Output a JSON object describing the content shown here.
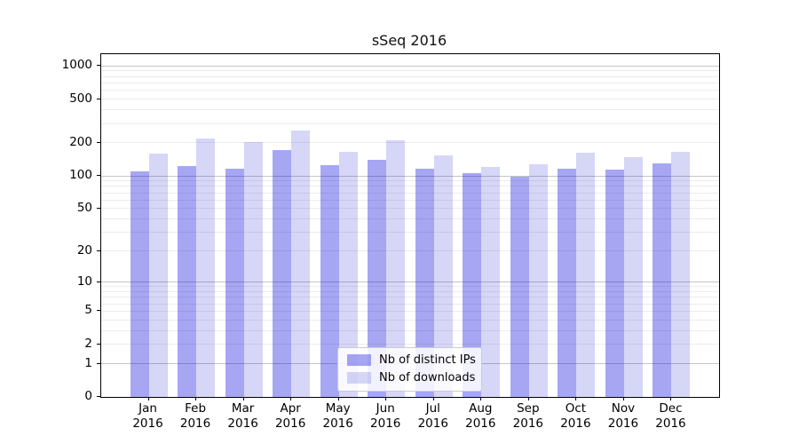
{
  "chart_data": {
    "type": "bar",
    "title": "sSeq 2016",
    "categories": [
      "Jan",
      "Feb",
      "Mar",
      "Apr",
      "May",
      "Jun",
      "Jul",
      "Aug",
      "Sep",
      "Oct",
      "Nov",
      "Dec"
    ],
    "category_year": "2016",
    "series": [
      {
        "name": "Nb of distinct IPs",
        "color": "rgba(0,0,220,0.35)",
        "values": [
          109,
          124,
          116,
          172,
          125,
          141,
          117,
          106,
          98,
          116,
          115,
          131
        ]
      },
      {
        "name": "Nb of downloads",
        "color": "rgba(0,0,205,0.16)",
        "values": [
          161,
          218,
          204,
          258,
          167,
          210,
          153,
          121,
          128,
          163,
          149,
          166
        ]
      }
    ],
    "y_axis": {
      "scale": "log1p",
      "ticks": [
        0,
        1,
        2,
        5,
        10,
        20,
        50,
        100,
        200,
        500,
        1000
      ],
      "max": 1280,
      "major_gridlines": [
        1,
        10,
        100,
        1000
      ],
      "minor_gridlines": [
        2,
        3,
        4,
        5,
        6,
        7,
        8,
        9,
        20,
        30,
        40,
        50,
        60,
        70,
        80,
        90,
        200,
        300,
        400,
        500,
        600,
        700,
        800,
        900
      ]
    },
    "legend": {
      "position": "lower center"
    },
    "grid": "on"
  },
  "colors": {
    "major_grid": "#c5c5c5",
    "minor_grid": "#ececec",
    "spine": "#000000",
    "background": "#ffffff"
  }
}
